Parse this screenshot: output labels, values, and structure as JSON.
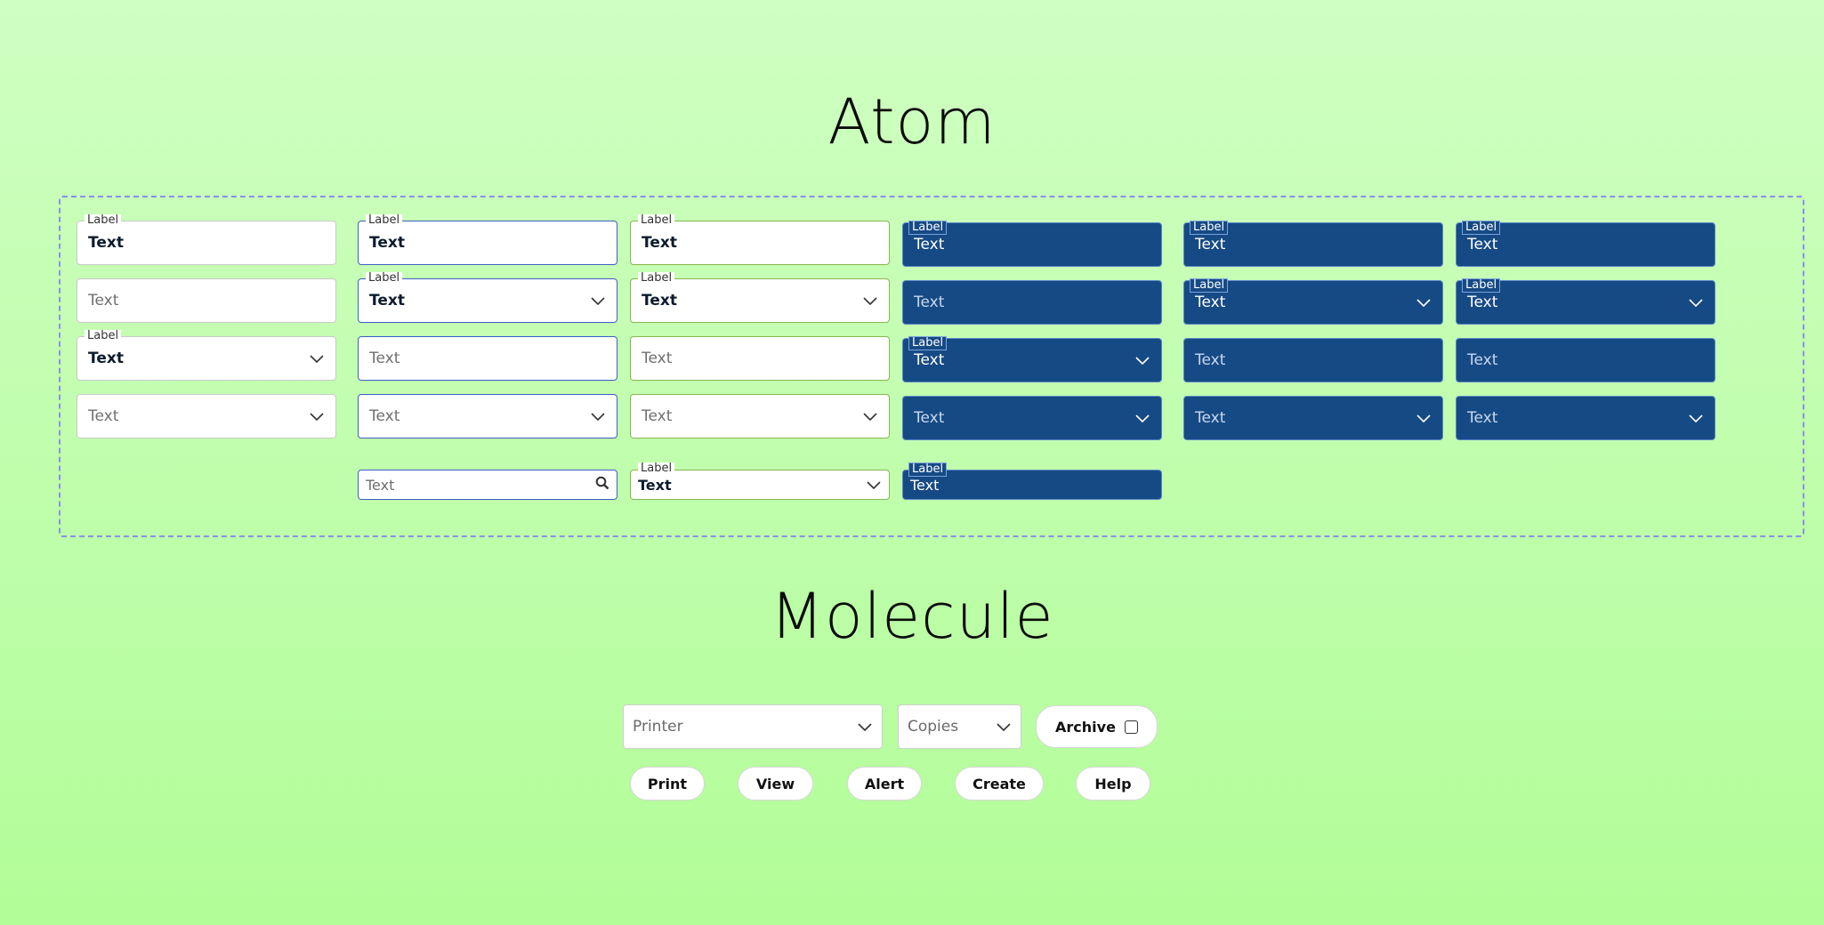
{
  "titles": {
    "atom": "Atom",
    "molecule": "Molecule"
  },
  "field": {
    "label": "Label",
    "text": "Text"
  },
  "molecule": {
    "printer": "Printer",
    "copies": "Copies",
    "archive": "Archive",
    "buttons": [
      "Print",
      "View",
      "Alert",
      "Create",
      "Help"
    ]
  },
  "colors": {
    "dark_field": "#164a85",
    "blue_border": "#3c5fc7",
    "green_border": "#86b64e",
    "dashed_box": "#8a8fe8"
  },
  "icons": {
    "dropdown": "chevron-down-icon",
    "search": "search-icon",
    "checkbox": "checkbox-icon"
  }
}
